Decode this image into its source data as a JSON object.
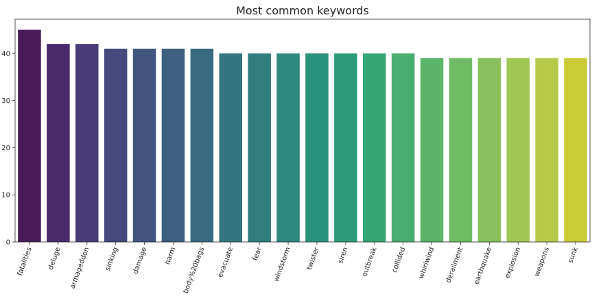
{
  "chart_data": {
    "type": "bar",
    "title": "Most common keywords",
    "xlabel": "",
    "ylabel": "",
    "categories": [
      "fatalities",
      "deluge",
      "armageddon",
      "sinking",
      "damage",
      "harm",
      "body%20bags",
      "evacuate",
      "fear",
      "windstorm",
      "twister",
      "siren",
      "outbreak",
      "collided",
      "whirlwind",
      "derailment",
      "earthquake",
      "explosion",
      "weapons",
      "sunk"
    ],
    "values": [
      45,
      42,
      42,
      41,
      41,
      41,
      41,
      40,
      40,
      40,
      40,
      40,
      40,
      40,
      39,
      39,
      39,
      39,
      39,
      39
    ],
    "colors": [
      "#481c59",
      "#4a2c6d",
      "#4a3c78",
      "#464a7d",
      "#42557f",
      "#3d5f80",
      "#386a80",
      "#347580",
      "#307e7f",
      "#2d887e",
      "#2a927c",
      "#2c9c79",
      "#36a675",
      "#47ae70",
      "#5ab56a",
      "#70bc64",
      "#88c15c",
      "#a2c653",
      "#b7c948",
      "#c9cc35"
    ],
    "ylim": [
      0,
      47.25
    ],
    "yticks": [
      0,
      10,
      20,
      30,
      40
    ],
    "grid": false
  }
}
